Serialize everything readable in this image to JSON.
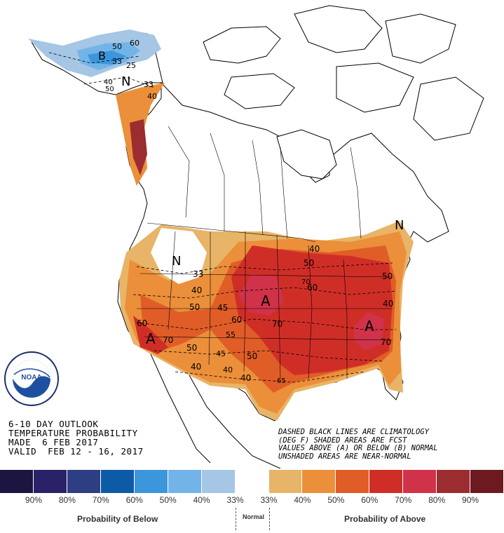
{
  "outlook": {
    "line1": "6-10 DAY OUTLOOK",
    "line2": "TEMPERATURE PROBABILITY",
    "line3": "MADE  6 FEB 2017",
    "line4": "VALID  FEB 12 - 16, 2017"
  },
  "notes": {
    "line1": "DASHED BLACK LINES ARE CLIMATOLOGY",
    "line2": "(DEG F) SHADED AREAS ARE FCST",
    "line3": "VALUES ABOVE (A) OR BELOW (B) NORMAL",
    "line4": "UNSHADED AREAS ARE NEAR-NORMAL"
  },
  "logo": {
    "text": "NOAA",
    "ring_text": "NATIONAL OCEANIC AND ATMOSPHERIC ADMINISTRATION · U.S. DEPARTMENT OF COMMERCE"
  },
  "legend": {
    "colors": [
      "#1c1541",
      "#2a2268",
      "#2e3e82",
      "#0d5aa6",
      "#3c96dc",
      "#72b4e8",
      "#a5c6e4",
      "#ffffff",
      "#e8b467",
      "#eb8f3a",
      "#e05d28",
      "#cf2e27",
      "#d0324a",
      "#9b2c2f",
      "#6c1a1f"
    ],
    "ticks": [
      "90%",
      "80%",
      "70%",
      "60%",
      "50%",
      "40%",
      "33%",
      "33%",
      "40%",
      "50%",
      "60%",
      "70%",
      "80%",
      "90%"
    ],
    "below_label": "Probability of Below",
    "normal_label": "Normal",
    "above_label": "Probability of Above"
  },
  "map_labels": {
    "above": [
      "A",
      "A",
      "A"
    ],
    "below": [
      "B"
    ],
    "normal": [
      "N",
      "N",
      "N"
    ],
    "contours": [
      "33",
      "40",
      "50",
      "60",
      "70",
      "40",
      "50",
      "60",
      "70",
      "45",
      "40",
      "50",
      "65",
      "40",
      "50",
      "60",
      "70",
      "33",
      "40",
      "50",
      "60",
      "70",
      "25",
      "33",
      "40",
      "50",
      "55",
      "40",
      "45",
      "40",
      "50",
      "60"
    ]
  }
}
